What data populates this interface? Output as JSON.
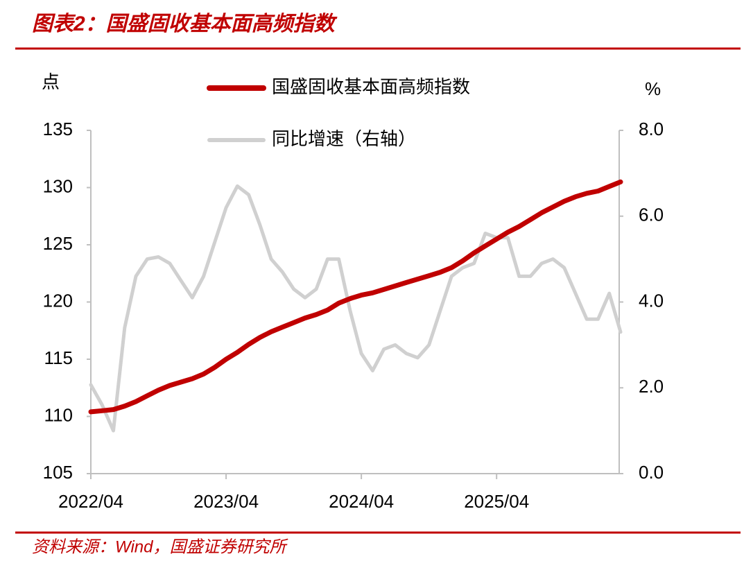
{
  "header": {
    "title": "图表2：国盛固收基本面高频指数"
  },
  "chart_data": {
    "type": "line",
    "y_label": "点",
    "y2_label": "%",
    "categories": [
      "2022/04",
      null,
      null,
      null,
      null,
      null,
      null,
      null,
      null,
      null,
      null,
      null,
      "2023/04",
      null,
      null,
      null,
      null,
      null,
      null,
      null,
      null,
      null,
      null,
      null,
      "2024/04",
      null,
      null,
      null,
      null,
      null,
      null,
      null,
      null,
      null,
      null,
      null,
      "2025/04",
      null,
      null,
      null,
      null,
      null,
      null,
      null,
      null,
      null,
      null,
      null
    ],
    "series": [
      {
        "name": "国盛固收基本面高频指数",
        "color": "#c00000",
        "values": [
          110.4,
          110.5,
          110.6,
          110.9,
          111.3,
          111.8,
          112.3,
          112.7,
          113.0,
          113.3,
          113.7,
          114.3,
          115.0,
          115.6,
          116.3,
          116.9,
          117.4,
          117.8,
          118.2,
          118.6,
          118.9,
          119.3,
          119.9,
          120.3,
          120.6,
          120.8,
          121.1,
          121.4,
          121.7,
          122.0,
          122.3,
          122.6,
          123.0,
          123.6,
          124.3,
          124.9,
          125.5,
          126.1,
          126.6,
          127.2,
          127.8,
          128.3,
          128.8,
          129.2,
          129.5,
          129.7,
          130.1,
          130.5
        ]
      },
      {
        "name": "同比增速（右轴）",
        "color": "#d0d0d0",
        "axis": "y2",
        "values": [
          2.07,
          1.6,
          1.0,
          3.4,
          4.6,
          5.0,
          5.05,
          4.9,
          4.5,
          4.1,
          4.6,
          5.4,
          6.2,
          6.7,
          6.5,
          5.8,
          5.0,
          4.7,
          4.3,
          4.1,
          4.3,
          5.0,
          5.0,
          3.8,
          2.8,
          2.4,
          2.9,
          3.0,
          2.8,
          2.7,
          3.0,
          3.8,
          4.6,
          4.8,
          4.9,
          5.6,
          5.5,
          5.5,
          4.6,
          4.6,
          4.9,
          5.0,
          4.8,
          4.2,
          3.6,
          3.6,
          4.2,
          3.3
        ]
      }
    ],
    "ylim": [
      105,
      135
    ],
    "yticks": [
      105,
      110,
      115,
      120,
      125,
      130,
      135
    ],
    "y2lim": [
      0,
      8
    ],
    "y2ticks": [
      {
        "value": 0,
        "label": "0.0"
      },
      {
        "value": 2,
        "label": "2.0"
      },
      {
        "value": 4,
        "label": "4.0"
      },
      {
        "value": 6,
        "label": "6.0"
      },
      {
        "value": 8,
        "label": "8.0"
      }
    ],
    "grid": false
  },
  "footer": {
    "source": "资料来源：Wind，国盛证券研究所"
  }
}
